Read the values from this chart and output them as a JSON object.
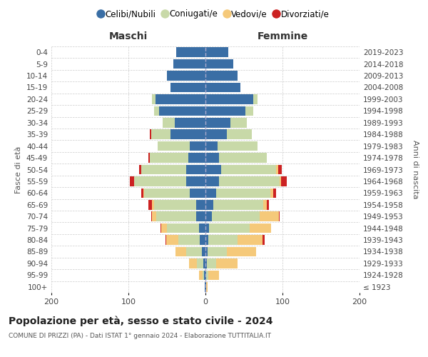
{
  "age_groups": [
    "100+",
    "95-99",
    "90-94",
    "85-89",
    "80-84",
    "75-79",
    "70-74",
    "65-69",
    "60-64",
    "55-59",
    "50-54",
    "45-49",
    "40-44",
    "35-39",
    "30-34",
    "25-29",
    "20-24",
    "15-19",
    "10-14",
    "5-9",
    "0-4"
  ],
  "birth_years": [
    "≤ 1923",
    "1924-1928",
    "1929-1933",
    "1934-1938",
    "1939-1943",
    "1944-1948",
    "1949-1953",
    "1954-1958",
    "1959-1963",
    "1964-1968",
    "1969-1973",
    "1974-1978",
    "1979-1983",
    "1984-1988",
    "1989-1993",
    "1994-1998",
    "1999-2003",
    "2004-2008",
    "2009-2013",
    "2014-2018",
    "2019-2023"
  ],
  "colors": {
    "celibi": "#3a6ea5",
    "coniugati": "#c8d9a8",
    "vedovi": "#f5c97a",
    "divorziati": "#cc2222"
  },
  "maschi": {
    "celibi": [
      1,
      2,
      3,
      5,
      7,
      8,
      12,
      12,
      20,
      25,
      25,
      22,
      20,
      45,
      40,
      60,
      65,
      45,
      50,
      42,
      38
    ],
    "coniugati": [
      0,
      2,
      8,
      20,
      28,
      42,
      52,
      55,
      60,
      68,
      58,
      50,
      42,
      25,
      16,
      7,
      4,
      0,
      0,
      0,
      0
    ],
    "vedovi": [
      0,
      4,
      10,
      14,
      16,
      7,
      5,
      2,
      1,
      0,
      0,
      0,
      0,
      0,
      0,
      0,
      0,
      0,
      0,
      0,
      0
    ],
    "divorziati": [
      0,
      0,
      0,
      0,
      1,
      1,
      1,
      5,
      2,
      5,
      3,
      2,
      0,
      2,
      0,
      0,
      0,
      0,
      0,
      0,
      0
    ]
  },
  "femmine": {
    "celibi": [
      1,
      1,
      2,
      3,
      4,
      5,
      8,
      10,
      14,
      18,
      20,
      18,
      16,
      28,
      32,
      52,
      62,
      45,
      42,
      36,
      30
    ],
    "coniugati": [
      0,
      3,
      12,
      25,
      38,
      52,
      62,
      65,
      70,
      78,
      72,
      62,
      52,
      32,
      22,
      10,
      6,
      0,
      0,
      0,
      0
    ],
    "vedovi": [
      2,
      14,
      28,
      38,
      32,
      28,
      25,
      5,
      4,
      2,
      2,
      0,
      0,
      0,
      0,
      0,
      0,
      0,
      0,
      0,
      0
    ],
    "divorziati": [
      0,
      0,
      0,
      0,
      3,
      0,
      1,
      2,
      4,
      8,
      5,
      0,
      0,
      0,
      0,
      0,
      0,
      0,
      0,
      0,
      0
    ]
  },
  "title": "Popolazione per età, sesso e stato civile - 2024",
  "subtitle": "COMUNE DI PRIZZI (PA) - Dati ISTAT 1° gennaio 2024 - Elaborazione TUTTITALIA.IT",
  "xlabel_left": "Maschi",
  "xlabel_right": "Femmine",
  "ylabel_left": "Fasce di età",
  "ylabel_right": "Anni di nascita",
  "xlim": 200,
  "legend_labels": [
    "Celibi/Nubili",
    "Coniugati/e",
    "Vedovi/e",
    "Divorziati/e"
  ],
  "background_color": "#ffffff",
  "grid_color": "#cccccc"
}
